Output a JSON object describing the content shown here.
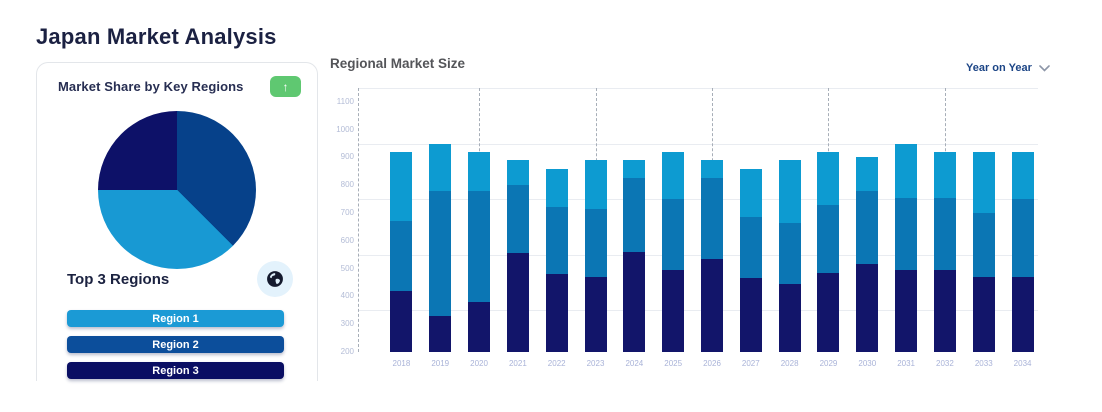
{
  "page_title": "Japan Market Analysis",
  "market_share_card": {
    "title": "Market Share by Key Regions",
    "trend_button_icon": "arrow-up",
    "trend_button_color": "#5fc871",
    "top_regions_title": "Top 3 Regions",
    "globe_button_icon": "globe",
    "region_buttons": [
      {
        "label": "Region 1",
        "color": "#1b9ad5"
      },
      {
        "label": "Region 2",
        "color": "#0c4e9b"
      },
      {
        "label": "Region 3",
        "color": "#0a0e63"
      }
    ]
  },
  "market_size_panel": {
    "title": "Regional Market Size",
    "period_selector": {
      "label": "Year on Year",
      "icon": "chevron-down"
    }
  },
  "chart_data": [
    {
      "type": "pie",
      "title": "Market Share by Key Regions",
      "legend_position": "none",
      "slices_clockwise_from_top": [
        {
          "label": "Region 2",
          "value_pct": 37.5,
          "color": "#06418a"
        },
        {
          "label": "Region 1",
          "value_pct": 37.5,
          "color": "#1899d3"
        },
        {
          "label": "Region 3",
          "value_pct": 25.0,
          "color": "#0d1168"
        }
      ]
    },
    {
      "type": "bar",
      "stacked": true,
      "title": "Regional Market Size",
      "xlabel": "",
      "ylabel": "",
      "ylim": [
        200,
        1150
      ],
      "baseline": 200,
      "yticks": [
        200,
        300,
        400,
        500,
        600,
        700,
        800,
        900,
        1000,
        1100
      ],
      "gridline_values": [
        350,
        550,
        750,
        950,
        1150
      ],
      "dashed_guides_at": [
        "2020",
        "2023",
        "2026",
        "2029",
        "2032"
      ],
      "grid": true,
      "legend_position": "none",
      "categories": [
        "2018",
        "2019",
        "2020",
        "2021",
        "2022",
        "2023",
        "2024",
        "2025",
        "2026",
        "2027",
        "2028",
        "2029",
        "2030",
        "2031",
        "2032",
        "2033",
        "2034"
      ],
      "series": [
        {
          "name": "series-navy",
          "color": "#12156a",
          "cumulative_top": [
            420,
            330,
            380,
            555,
            480,
            470,
            560,
            495,
            535,
            465,
            445,
            485,
            515,
            495,
            495,
            470,
            470
          ]
        },
        {
          "name": "series-blue",
          "color": "#0b76b4",
          "cumulative_top": [
            670,
            780,
            780,
            800,
            720,
            715,
            825,
            750,
            825,
            685,
            665,
            730,
            780,
            755,
            755,
            700,
            750
          ]
        },
        {
          "name": "series-cyan",
          "color": "#0d9bd1",
          "cumulative_top": [
            920,
            950,
            920,
            890,
            860,
            890,
            890,
            920,
            890,
            860,
            890,
            920,
            900,
            950,
            920,
            920,
            920
          ]
        }
      ]
    }
  ]
}
